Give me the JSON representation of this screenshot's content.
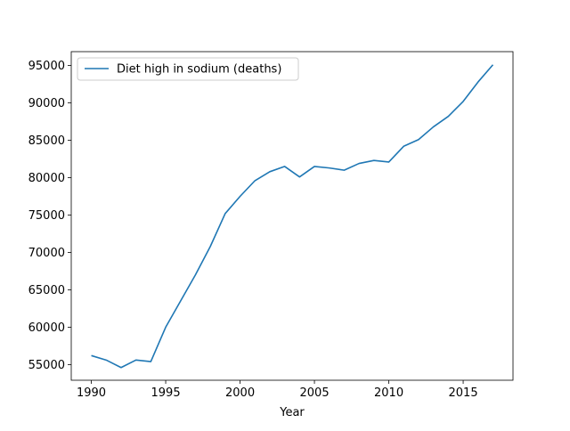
{
  "chart_data": {
    "type": "line",
    "title": "",
    "xlabel": "Year",
    "ylabel": "",
    "xlim": [
      1988.65,
      2018.35
    ],
    "ylim": [
      52900,
      96860
    ],
    "xticks": [
      1990,
      1995,
      2000,
      2005,
      2010,
      2015
    ],
    "yticks": [
      55000,
      60000,
      65000,
      70000,
      75000,
      80000,
      85000,
      90000,
      95000
    ],
    "grid": false,
    "legend_position": "top-left",
    "series": [
      {
        "name": "Diet high in sodium (deaths)",
        "color": "#1f77b4",
        "x": [
          1990,
          1991,
          1992,
          1993,
          1994,
          1995,
          1996,
          1997,
          1998,
          1999,
          2000,
          2001,
          2002,
          2003,
          2004,
          2005,
          2006,
          2007,
          2008,
          2009,
          2010,
          2011,
          2012,
          2013,
          2014,
          2015,
          2016,
          2017
        ],
        "y": [
          56200,
          55600,
          54600,
          55600,
          55400,
          60000,
          63500,
          67000,
          70800,
          75200,
          77500,
          79600,
          80800,
          81500,
          80100,
          81500,
          81300,
          81000,
          81900,
          82300,
          82100,
          84200,
          85100,
          86800,
          88200,
          90200,
          92800,
          95100
        ]
      }
    ]
  }
}
